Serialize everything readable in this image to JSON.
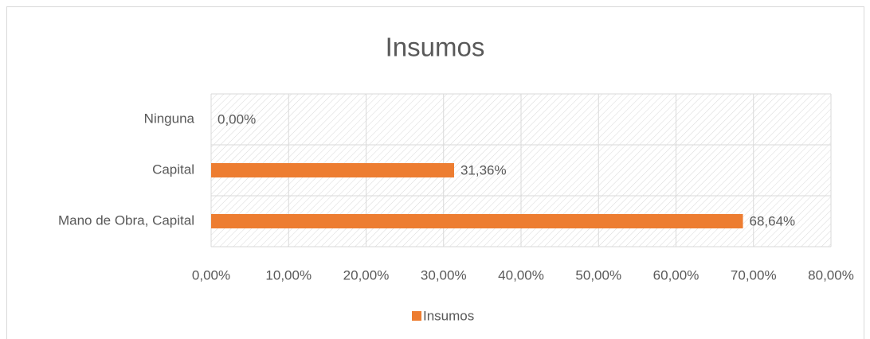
{
  "chart_data": {
    "type": "hbar",
    "title": "Insumos",
    "categories": [
      "Ninguna",
      "Capital",
      "Mano de Obra, Capital"
    ],
    "series": [
      {
        "name": "Insumos",
        "color": "#ed7d31",
        "values": [
          0,
          31.36,
          68.64
        ],
        "value_labels": [
          "0,00%",
          "31,36%",
          "68,64%"
        ]
      }
    ],
    "xlim": [
      0,
      80
    ],
    "xticks": [
      {
        "value": 0,
        "label": "0,00%"
      },
      {
        "value": 10,
        "label": "10,00%"
      },
      {
        "value": 20,
        "label": "20,00%"
      },
      {
        "value": 30,
        "label": "30,00%"
      },
      {
        "value": 40,
        "label": "40,00%"
      },
      {
        "value": 50,
        "label": "50,00%"
      },
      {
        "value": 60,
        "label": "60,00%"
      },
      {
        "value": 70,
        "label": "70,00%"
      },
      {
        "value": 80,
        "label": "80,00%"
      }
    ],
    "grid": true,
    "legend": "bottom"
  }
}
